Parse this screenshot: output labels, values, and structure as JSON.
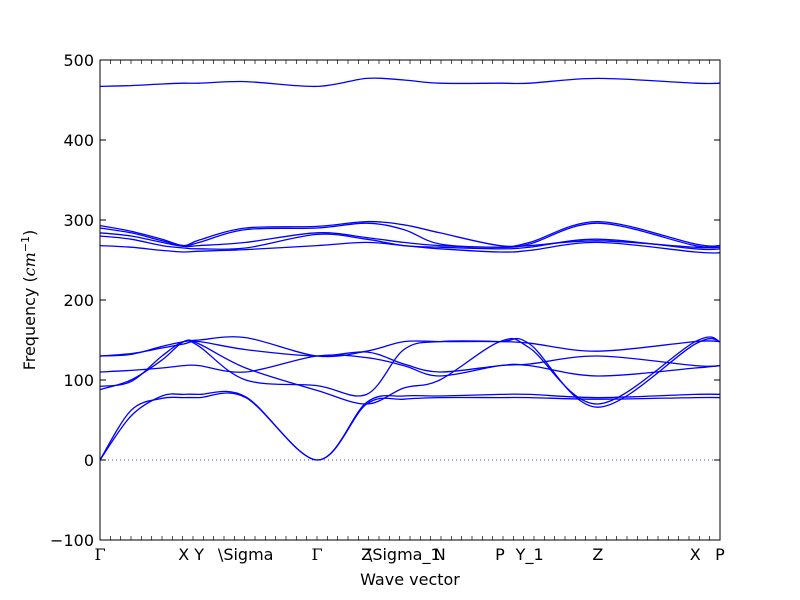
{
  "chart_data": {
    "type": "line",
    "title": "",
    "xlabel": "Wave vector",
    "ylabel": "Frequency (cm⁻¹)",
    "ylabel_prefix": "Frequency (",
    "ylabel_unit": "cm",
    "ylabel_exp": "−1",
    "ylabel_suffix": ")",
    "ylim": [
      -100,
      500
    ],
    "xlim": [
      0,
      1
    ],
    "yticks": [
      -100,
      0,
      100,
      200,
      300,
      400,
      500
    ],
    "line_color": "#0000ff",
    "zero_line_color": "#4a4aa8",
    "grid": false,
    "legend": "none",
    "high_symmetry_points": [
      {
        "label": "Γ",
        "x": 0.0,
        "serif": true
      },
      {
        "label": "X",
        "x": 0.135
      },
      {
        "label": "Y",
        "x": 0.16
      },
      {
        "label": "\\Sigma",
        "x": 0.235
      },
      {
        "label": "Γ",
        "x": 0.35,
        "serif": true
      },
      {
        "label": "Z",
        "x": 0.43
      },
      {
        "label": "\\Sigma_1",
        "x": 0.49
      },
      {
        "label": "N",
        "x": 0.548
      },
      {
        "label": "P",
        "x": 0.645
      },
      {
        "label": "Y_1",
        "x": 0.693
      },
      {
        "label": "Z",
        "x": 0.803
      },
      {
        "label": "X",
        "x": 0.96
      },
      {
        "label": "P",
        "x": 1.0
      }
    ],
    "series": [
      {
        "x": [
          0,
          0.05,
          0.1,
          0.135,
          0.16,
          0.235,
          0.35,
          0.43,
          0.49,
          0.548,
          0.645,
          0.693,
          0.803,
          0.96,
          1.0
        ],
        "y": [
          0,
          62,
          77,
          78,
          78,
          78,
          0,
          70,
          76,
          78,
          78,
          78,
          76,
          78,
          78
        ]
      },
      {
        "x": [
          0,
          0.05,
          0.1,
          0.135,
          0.16,
          0.235,
          0.35,
          0.43,
          0.49,
          0.548,
          0.645,
          0.693,
          0.803,
          0.96,
          1.0
        ],
        "y": [
          0,
          55,
          80,
          82,
          82,
          79,
          0,
          72,
          80,
          80,
          82,
          82,
          78,
          82,
          82
        ]
      },
      {
        "x": [
          0,
          0.05,
          0.1,
          0.135,
          0.16,
          0.235,
          0.35,
          0.43,
          0.49,
          0.548,
          0.645,
          0.693,
          0.803,
          0.96,
          1.0
        ],
        "y": [
          88,
          100,
          125,
          148,
          145,
          115,
          87,
          70,
          90,
          100,
          148,
          140,
          70,
          148,
          148
        ]
      },
      {
        "x": [
          0,
          0.05,
          0.1,
          0.135,
          0.16,
          0.235,
          0.35,
          0.43,
          0.49,
          0.548,
          0.645,
          0.693,
          0.803,
          0.96,
          1.0
        ],
        "y": [
          92,
          98,
          130,
          148,
          142,
          100,
          93,
          82,
          138,
          148,
          148,
          145,
          66,
          145,
          148
        ]
      },
      {
        "x": [
          0,
          0.05,
          0.1,
          0.135,
          0.16,
          0.235,
          0.35,
          0.43,
          0.49,
          0.548,
          0.645,
          0.693,
          0.803,
          0.96,
          1.0
        ],
        "y": [
          110,
          112,
          115,
          118,
          118,
          110,
          130,
          128,
          118,
          105,
          118,
          118,
          105,
          115,
          118
        ]
      },
      {
        "x": [
          0,
          0.05,
          0.1,
          0.135,
          0.16,
          0.235,
          0.35,
          0.43,
          0.49,
          0.548,
          0.645,
          0.693,
          0.803,
          0.96,
          1.0
        ],
        "y": [
          130,
          133,
          140,
          145,
          148,
          138,
          130,
          135,
          120,
          110,
          118,
          120,
          130,
          118,
          118
        ]
      },
      {
        "x": [
          0,
          0.05,
          0.1,
          0.135,
          0.16,
          0.235,
          0.35,
          0.43,
          0.49,
          0.548,
          0.645,
          0.693,
          0.803,
          0.96,
          1.0
        ],
        "y": [
          130,
          132,
          142,
          148,
          150,
          153,
          130,
          136,
          148,
          148,
          148,
          146,
          136,
          148,
          148
        ]
      },
      {
        "x": [
          0,
          0.05,
          0.1,
          0.135,
          0.16,
          0.235,
          0.35,
          0.43,
          0.49,
          0.548,
          0.645,
          0.693,
          0.803,
          0.96,
          1.0
        ],
        "y": [
          268,
          266,
          262,
          260,
          261,
          263,
          268,
          272,
          268,
          264,
          260,
          262,
          272,
          260,
          259
        ]
      },
      {
        "x": [
          0,
          0.05,
          0.1,
          0.135,
          0.16,
          0.235,
          0.35,
          0.43,
          0.49,
          0.548,
          0.645,
          0.693,
          0.803,
          0.96,
          1.0
        ],
        "y": [
          280,
          276,
          268,
          265,
          264,
          265,
          282,
          276,
          268,
          266,
          264,
          266,
          276,
          264,
          264
        ]
      },
      {
        "x": [
          0,
          0.05,
          0.1,
          0.135,
          0.16,
          0.235,
          0.35,
          0.43,
          0.49,
          0.548,
          0.645,
          0.693,
          0.803,
          0.96,
          1.0
        ],
        "y": [
          284,
          280,
          272,
          267,
          268,
          272,
          284,
          278,
          272,
          268,
          266,
          268,
          274,
          266,
          266
        ]
      },
      {
        "x": [
          0,
          0.05,
          0.1,
          0.135,
          0.16,
          0.235,
          0.35,
          0.43,
          0.49,
          0.548,
          0.645,
          0.693,
          0.803,
          0.96,
          1.0
        ],
        "y": [
          290,
          284,
          274,
          268,
          272,
          288,
          290,
          296,
          288,
          270,
          266,
          270,
          296,
          268,
          268
        ]
      },
      {
        "x": [
          0,
          0.05,
          0.1,
          0.135,
          0.16,
          0.235,
          0.35,
          0.43,
          0.49,
          0.548,
          0.645,
          0.693,
          0.803,
          0.96,
          1.0
        ],
        "y": [
          293,
          286,
          276,
          268,
          275,
          290,
          292,
          298,
          294,
          284,
          268,
          272,
          298,
          270,
          268
        ]
      },
      {
        "x": [
          0,
          0.05,
          0.1,
          0.135,
          0.16,
          0.235,
          0.35,
          0.43,
          0.49,
          0.548,
          0.645,
          0.693,
          0.803,
          0.96,
          1.0
        ],
        "y": [
          467,
          468,
          470,
          471,
          471,
          473,
          467,
          477,
          475,
          471,
          471,
          471,
          477,
          471,
          471
        ]
      }
    ]
  }
}
